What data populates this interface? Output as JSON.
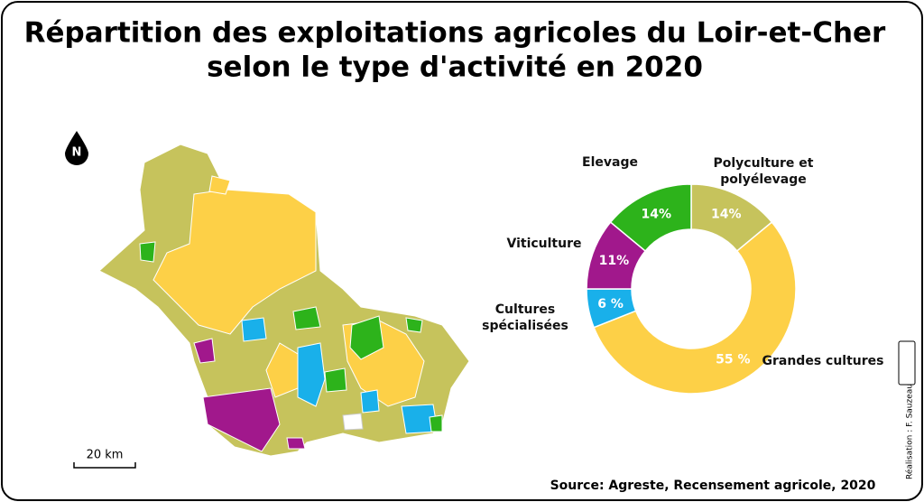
{
  "title": [
    "Répartition des exploitations agricoles du Loir-et-Cher",
    "selon le type d'activité en 2020"
  ],
  "north": "N",
  "scale_label": "20 km",
  "chart_data": {
    "type": "pie",
    "donut": true,
    "categories": [
      "Polyculture et polyélevage",
      "Grandes cultures",
      "Cultures spécialisées",
      "Viticulture",
      "Elevage"
    ],
    "values": [
      14,
      55,
      6,
      11,
      14
    ],
    "value_labels": [
      "14%",
      "55 %",
      "6 %",
      "11%",
      "14%"
    ],
    "colors": [
      "#c6c35c",
      "#fdd047",
      "#19b0ea",
      "#a1188c",
      "#2db31b"
    ]
  },
  "source": "Source: Agreste, Recensement agricole, 2020",
  "credit": "Réalisation : F. Sauzeau"
}
